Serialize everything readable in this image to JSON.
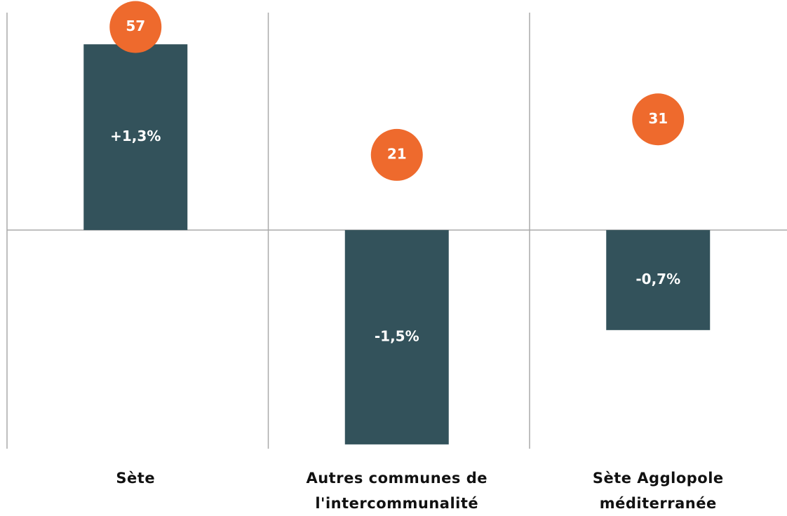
{
  "chart_data": {
    "type": "bar",
    "categories": [
      "Sète",
      "Autres communes de l'intercommunalité",
      "Sète Agglopole méditerranée"
    ],
    "series": [
      {
        "type": "bar",
        "color": "#33525b",
        "values": [
          1.3,
          -1.5,
          -0.7
        ],
        "value_labels": [
          "+1,3%",
          "-1,5%",
          "-0,7%"
        ]
      },
      {
        "type": "circle",
        "color": "#ee6a2d",
        "axis": "y2",
        "values": [
          57,
          21,
          31
        ]
      }
    ],
    "ylim": [
      -1.53,
      1.61
    ],
    "y2lim": [
      -61.7,
      64.6
    ]
  }
}
